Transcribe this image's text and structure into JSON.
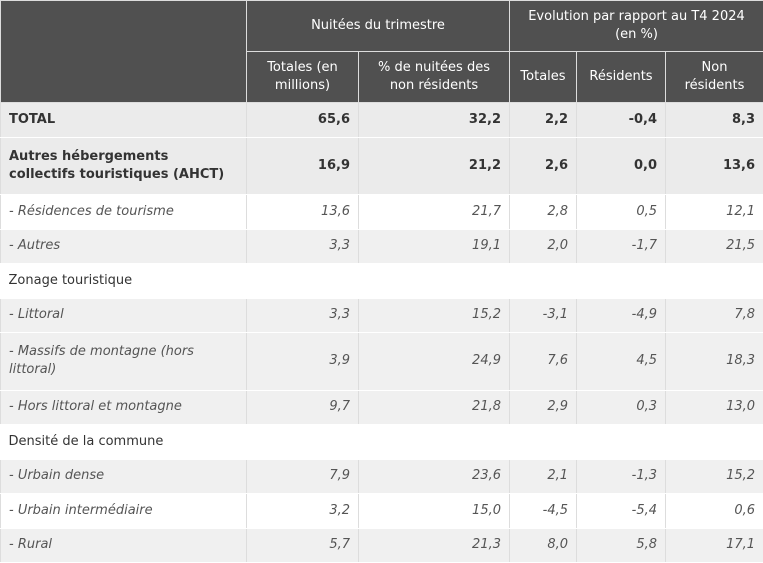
{
  "header": {
    "group_1": "Nuitées du trimestre",
    "group_2": "Evolution par rapport au T4 2024 (en %)",
    "columns": [
      "Totales (en millions)",
      "% de nuitées des non résidents",
      "Totales",
      "Résidents",
      "Non résidents"
    ]
  },
  "table": {
    "rows": [
      [
        "TOTAL",
        "65,6",
        "32,2",
        "2,2",
        "-0,4",
        "8,3"
      ],
      [
        "Autres hébergements collectifs touristiques (AHCT)",
        "16,9",
        "21,2",
        "2,6",
        "0,0",
        "13,6"
      ],
      [
        "- Résidences de tourisme",
        "13,6",
        "21,7",
        "2,8",
        "0,5",
        "12,1"
      ],
      [
        "- Autres",
        "3,3",
        "19,1",
        "2,0",
        "-1,7",
        "21,5"
      ],
      [
        "Zonage touristique"
      ],
      [
        "- Littoral",
        "3,3",
        "15,2",
        "-3,1",
        "-4,9",
        "7,8"
      ],
      [
        "- Massifs de montagne (hors littoral)",
        "3,9",
        "24,9",
        "7,6",
        "4,5",
        "18,3"
      ],
      [
        "- Hors littoral et montagne",
        "9,7",
        "21,8",
        "2,9",
        "0,3",
        "13,0"
      ],
      [
        "Densité de la commune"
      ],
      [
        "- Urbain dense",
        "7,9",
        "23,6",
        "2,1",
        "-1,3",
        "15,2"
      ],
      [
        "- Urbain intermédiaire",
        "3,2",
        "15,0",
        "-4,5",
        "-5,4",
        "0,6"
      ],
      [
        "- Rural",
        "5,7",
        "21,3",
        "8,0",
        "5,8",
        "17,1"
      ]
    ]
  }
}
